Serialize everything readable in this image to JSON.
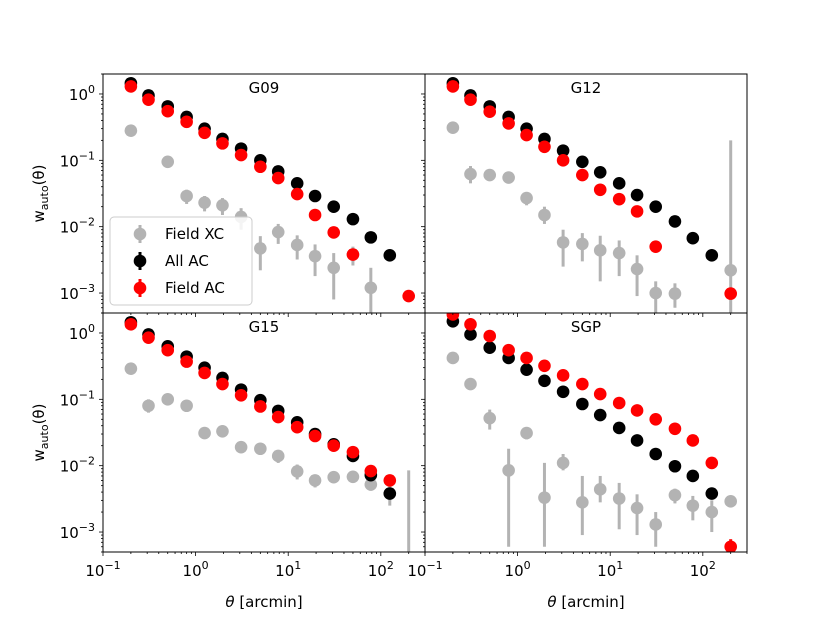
{
  "chart_data": {
    "type": "scatter",
    "xscale": "log",
    "yscale": "log",
    "xlim": [
      0.1,
      300
    ],
    "ylim": [
      0.0005,
      2
    ],
    "xlabel_main": "θ",
    "xlabel_units": " [arcmin]",
    "ylabel_main": "w",
    "ylabel_sub": "auto",
    "ylabel_tail": "(θ)",
    "xticks": [
      {
        "value": 0.1,
        "base": "10",
        "exp": "−1"
      },
      {
        "value": 1,
        "base": "10",
        "exp": "0"
      },
      {
        "value": 10,
        "base": "10",
        "exp": "1"
      },
      {
        "value": 100,
        "base": "10",
        "exp": "2"
      }
    ],
    "yticks": [
      {
        "value": 0.001,
        "base": "10",
        "exp": "−3"
      },
      {
        "value": 0.01,
        "base": "10",
        "exp": "−2"
      },
      {
        "value": 0.1,
        "base": "10",
        "exp": "−1"
      },
      {
        "value": 1,
        "base": "10",
        "exp": "0"
      }
    ],
    "legend": [
      {
        "name": "Field XC",
        "color": "#b3b3b3"
      },
      {
        "name": "All AC",
        "color": "#000000"
      },
      {
        "name": "Field AC",
        "color": "#ff0000"
      }
    ],
    "legend_placement": "lower-left (G09 panel)",
    "panels": [
      {
        "title": "G09",
        "series": [
          {
            "name": "Field XC",
            "color": "#b3b3b3",
            "x": [
              0.2,
              0.5,
              0.8,
              1.25,
              1.95,
              3.1,
              5.0,
              7.8,
              12.5,
              19.5,
              31,
              50,
              78,
              125,
              200
            ],
            "y": [
              0.28,
              0.095,
              0.029,
              0.023,
              0.021,
              0.014,
              0.0047,
              0.0083,
              0.0053,
              0.0036,
              0.0024,
              0.0038,
              0.0012,
              null,
              null
            ],
            "err": [
              [
                0.26,
                0.3
              ],
              [
                0.088,
                0.102
              ],
              [
                0.022,
                0.036
              ],
              [
                0.017,
                0.029
              ],
              [
                0.015,
                0.027
              ],
              [
                0.009,
                0.019
              ],
              [
                0.0022,
                0.0072
              ],
              [
                0.0055,
                0.011
              ],
              [
                0.0032,
                0.0074
              ],
              [
                0.0018,
                0.0054
              ],
              [
                0.0008,
                0.004
              ],
              [
                0.0026,
                0.005
              ],
              [
                0.0004,
                0.0024
              ],
              null,
              null
            ]
          },
          {
            "name": "All AC",
            "color": "#000000",
            "x": [
              0.2,
              0.31,
              0.5,
              0.8,
              1.25,
              1.95,
              3.1,
              5.0,
              7.8,
              12.5,
              19.5,
              31,
              50,
              78,
              125
            ],
            "y": [
              1.45,
              0.95,
              0.65,
              0.45,
              0.3,
              0.21,
              0.15,
              0.1,
              0.068,
              0.045,
              0.029,
              0.02,
              0.013,
              0.0069,
              0.0037
            ]
          },
          {
            "name": "Field AC",
            "color": "#ff0000",
            "x": [
              0.2,
              0.31,
              0.5,
              0.8,
              1.25,
              1.95,
              3.1,
              5.0,
              7.8,
              12.5,
              19.5,
              31,
              50,
              200
            ],
            "y": [
              1.3,
              0.82,
              0.55,
              0.38,
              0.26,
              0.18,
              0.12,
              0.08,
              0.054,
              0.031,
              0.015,
              0.0082,
              0.0038,
              0.0009
            ]
          }
        ]
      },
      {
        "title": "G12",
        "series": [
          {
            "name": "Field XC",
            "color": "#b3b3b3",
            "x": [
              0.2,
              0.31,
              0.5,
              0.8,
              1.25,
              1.95,
              3.1,
              5.0,
              7.8,
              12.5,
              19.5,
              31,
              50,
              200
            ],
            "y": [
              0.31,
              0.062,
              0.06,
              0.055,
              0.027,
              0.015,
              0.0058,
              0.0055,
              0.0044,
              0.004,
              0.0023,
              0.001,
              0.00098,
              0.0022
            ],
            "err": [
              [
                0.28,
                0.34
              ],
              [
                0.045,
                0.082
              ],
              [
                0.05,
                0.07
              ],
              [
                0.046,
                0.064
              ],
              [
                0.021,
                0.033
              ],
              [
                0.011,
                0.02
              ],
              [
                0.0025,
                0.009
              ],
              [
                0.003,
                0.008
              ],
              [
                0.0015,
                0.0073
              ],
              [
                0.0018,
                0.0062
              ],
              [
                0.0009,
                0.0037
              ],
              [
                0.0005,
                0.0015
              ],
              [
                0.0006,
                0.0014
              ],
              [
                0.0005,
                0.2
              ]
            ]
          },
          {
            "name": "All AC",
            "color": "#000000",
            "x": [
              0.2,
              0.31,
              0.5,
              0.8,
              1.25,
              1.95,
              3.1,
              5.0,
              7.8,
              12.5,
              19.5,
              31,
              50,
              78,
              125
            ],
            "y": [
              1.45,
              0.95,
              0.65,
              0.45,
              0.3,
              0.21,
              0.14,
              0.095,
              0.066,
              0.045,
              0.03,
              0.02,
              0.012,
              0.0067,
              0.0037
            ]
          },
          {
            "name": "Field AC",
            "color": "#ff0000",
            "x": [
              0.2,
              0.31,
              0.5,
              0.8,
              1.25,
              1.95,
              3.1,
              5.0,
              7.8,
              12.5,
              19.5,
              31,
              200
            ],
            "y": [
              1.3,
              0.82,
              0.54,
              0.36,
              0.24,
              0.16,
              0.1,
              0.06,
              0.036,
              0.026,
              0.017,
              0.005,
              0.00098
            ]
          }
        ]
      },
      {
        "title": "G15",
        "series": [
          {
            "name": "Field XC",
            "color": "#b3b3b3",
            "x": [
              0.2,
              0.31,
              0.5,
              0.8,
              1.25,
              1.95,
              3.1,
              5.0,
              7.8,
              12.5,
              19.5,
              31,
              50,
              78,
              125,
              200
            ],
            "y": [
              0.29,
              0.08,
              0.1,
              0.08,
              0.031,
              0.033,
              0.019,
              0.018,
              0.014,
              0.0082,
              0.006,
              0.0067,
              0.0068,
              0.0052,
              0.0038,
              null
            ],
            "err": [
              [
                0.27,
                0.31
              ],
              [
                0.063,
                0.1
              ],
              [
                0.09,
                0.11
              ],
              [
                0.07,
                0.09
              ],
              [
                0.027,
                0.035
              ],
              [
                0.029,
                0.037
              ],
              [
                0.016,
                0.022
              ],
              [
                0.015,
                0.021
              ],
              [
                0.011,
                0.017
              ],
              [
                0.0062,
                0.0104
              ],
              [
                0.0047,
                0.0073
              ],
              [
                0.0057,
                0.0077
              ],
              [
                0.0058,
                0.0078
              ],
              [
                0.0042,
                0.0062
              ],
              [
                0.0025,
                0.0051
              ],
              [
                0.0004,
                0.0085
              ]
            ]
          },
          {
            "name": "All AC",
            "color": "#000000",
            "x": [
              0.2,
              0.31,
              0.5,
              0.8,
              1.25,
              1.95,
              3.1,
              5.0,
              7.8,
              12.5,
              19.5,
              31,
              50,
              78,
              125
            ],
            "y": [
              1.45,
              0.95,
              0.63,
              0.44,
              0.3,
              0.21,
              0.14,
              0.097,
              0.067,
              0.045,
              0.03,
              0.021,
              0.014,
              0.0072,
              0.0038
            ]
          },
          {
            "name": "Field AC",
            "color": "#ff0000",
            "x": [
              0.2,
              0.31,
              0.5,
              0.8,
              1.25,
              1.95,
              3.1,
              5.0,
              7.8,
              12.5,
              19.5,
              31,
              50,
              78,
              125
            ],
            "y": [
              1.35,
              0.85,
              0.55,
              0.37,
              0.25,
              0.17,
              0.115,
              0.078,
              0.054,
              0.038,
              0.028,
              0.02,
              0.016,
              0.0083,
              0.006
            ]
          }
        ]
      },
      {
        "title": "SGP",
        "series": [
          {
            "name": "Field XC",
            "color": "#b3b3b3",
            "x": [
              0.2,
              0.31,
              0.5,
              0.8,
              1.25,
              1.95,
              3.1,
              5.0,
              7.8,
              12.5,
              19.5,
              31,
              50,
              78,
              125,
              200
            ],
            "y": [
              0.42,
              0.17,
              0.052,
              0.0085,
              0.031,
              0.0033,
              0.011,
              0.0028,
              0.0044,
              0.0032,
              0.0023,
              0.0013,
              0.0036,
              0.0025,
              0.002,
              0.0029
            ],
            "err": [
              [
                0.38,
                0.46
              ],
              [
                0.15,
                0.19
              ],
              [
                0.035,
                0.07
              ],
              [
                0.0006,
                0.018
              ],
              [
                0.025,
                0.037
              ],
              [
                0.0006,
                0.011
              ],
              [
                0.0085,
                0.015
              ],
              [
                0.0009,
                0.007
              ],
              [
                0.0028,
                0.007
              ],
              [
                0.0011,
                0.0055
              ],
              [
                0.0009,
                0.0037
              ],
              [
                0.0006,
                0.002
              ],
              [
                0.0027,
                0.0045
              ],
              [
                0.0015,
                0.0035
              ],
              [
                0.001,
                0.003
              ],
              [
                0.0024,
                0.0034
              ]
            ]
          },
          {
            "name": "All AC",
            "color": "#000000",
            "x": [
              0.2,
              0.31,
              0.5,
              0.8,
              1.25,
              1.95,
              3.1,
              5.0,
              7.8,
              12.5,
              19.5,
              31,
              50,
              78,
              125
            ],
            "y": [
              1.5,
              0.95,
              0.6,
              0.42,
              0.28,
              0.19,
              0.13,
              0.085,
              0.058,
              0.037,
              0.024,
              0.015,
              0.0098,
              0.007,
              0.0038
            ]
          },
          {
            "name": "Field AC",
            "color": "#ff0000",
            "x": [
              0.2,
              0.31,
              0.5,
              0.8,
              1.25,
              1.95,
              3.1,
              5.0,
              7.8,
              12.5,
              19.5,
              31,
              50,
              78,
              125,
              200
            ],
            "y": [
              1.9,
              1.35,
              0.9,
              0.55,
              0.42,
              0.32,
              0.23,
              0.17,
              0.12,
              0.088,
              0.068,
              0.05,
              0.036,
              0.024,
              0.011,
              0.0006
            ],
            "err": [
              null,
              null,
              null,
              null,
              null,
              null,
              null,
              null,
              null,
              null,
              null,
              null,
              null,
              null,
              null,
              [
                0.0005,
                0.00078
              ]
            ]
          }
        ]
      }
    ]
  }
}
